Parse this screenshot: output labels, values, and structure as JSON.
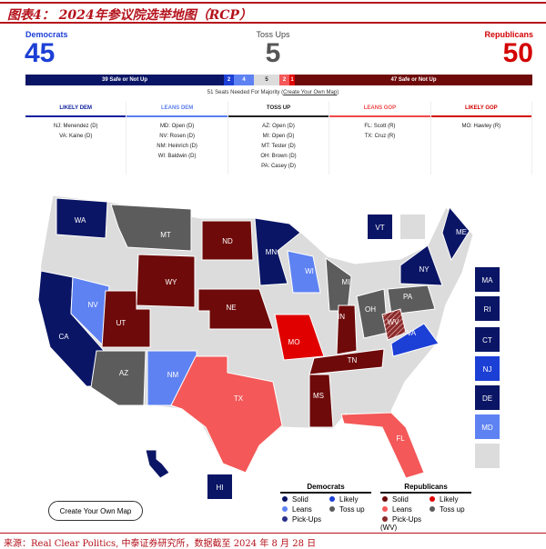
{
  "title": "图表4：  2024年参议院选举地图（RCP）",
  "summary": {
    "dem_label": "Democrats",
    "dem_count": "45",
    "toss_label": "Toss Ups",
    "toss_count": "5",
    "rep_label": "Republicans",
    "rep_count": "50"
  },
  "bar": {
    "dem_safe": "39 Safe or Not Up",
    "dem_likely": "2",
    "dem_leans": "4",
    "toss": "5",
    "rep_leans": "2",
    "rep_likely": "1",
    "rep_safe": "47 Safe or Not Up"
  },
  "majority": {
    "text": "51 Seats Needed For Majority (",
    "link": "Create Your Own Map",
    "close": ")"
  },
  "columns": [
    {
      "title": "LIKELY DEM",
      "color": "#0d1f9e",
      "races": [
        "NJ: Menendez (D)",
        "VA: Kaine (D)"
      ]
    },
    {
      "title": "LEANS DEM",
      "color": "#5b7ef0",
      "races": [
        "MD: Open (D)",
        "NV: Rosen (D)",
        "NM: Heinrich (D)",
        "WI: Baldwin (D)"
      ]
    },
    {
      "title": "TOSS UP",
      "color": "#222222",
      "races": [
        "AZ: Open (D)",
        "MI: Open (D)",
        "MT: Tester (D)",
        "OH: Brown (D)",
        "PA: Casey (D)"
      ]
    },
    {
      "title": "LEANS GOP",
      "color": "#f04848",
      "races": [
        "FL: Scott (R)",
        "TX: Cruz (R)"
      ]
    },
    {
      "title": "LIKELY GOP",
      "color": "#d40000",
      "races": [
        "MO: Hawley (R)"
      ]
    }
  ],
  "colors": {
    "dem_solid": "#0a1565",
    "dem_likely": "#1c3fd6",
    "dem_leans": "#5e82f2",
    "toss": "#5c5c5c",
    "rep_solid": "#6e0a0a",
    "rep_likely": "#e00000",
    "rep_leans": "#f45858",
    "none": "#dcdcdc"
  },
  "states": [
    {
      "code": "WA",
      "cat": "dem_solid"
    },
    {
      "code": "CA",
      "cat": "dem_solid"
    },
    {
      "code": "NV",
      "cat": "dem_leans"
    },
    {
      "code": "MT",
      "cat": "toss"
    },
    {
      "code": "WY",
      "cat": "rep_solid"
    },
    {
      "code": "UT",
      "cat": "rep_solid"
    },
    {
      "code": "AZ",
      "cat": "toss"
    },
    {
      "code": "NM",
      "cat": "dem_leans"
    },
    {
      "code": "ND",
      "cat": "rep_solid"
    },
    {
      "code": "NE",
      "cat": "rep_solid"
    },
    {
      "code": "TX",
      "cat": "rep_leans"
    },
    {
      "code": "MN",
      "cat": "dem_solid"
    },
    {
      "code": "WI",
      "cat": "dem_leans"
    },
    {
      "code": "MO",
      "cat": "rep_likely"
    },
    {
      "code": "MI",
      "cat": "toss"
    },
    {
      "code": "IN",
      "cat": "rep_solid"
    },
    {
      "code": "OH",
      "cat": "toss"
    },
    {
      "code": "TN",
      "cat": "rep_solid"
    },
    {
      "code": "MS",
      "cat": "rep_solid"
    },
    {
      "code": "FL",
      "cat": "rep_leans"
    },
    {
      "code": "PA",
      "cat": "toss"
    },
    {
      "code": "WV",
      "cat": "rep_pickup"
    },
    {
      "code": "VA",
      "cat": "dem_likely"
    },
    {
      "code": "NY",
      "cat": "dem_solid"
    },
    {
      "code": "ME",
      "cat": "dem_solid"
    },
    {
      "code": "HI",
      "cat": "dem_solid"
    }
  ],
  "boxes": [
    {
      "code": "VT",
      "cat": "dem_solid"
    },
    {
      "code": "",
      "cat": "none"
    },
    {
      "code": "MA",
      "cat": "dem_solid"
    },
    {
      "code": "RI",
      "cat": "dem_solid"
    },
    {
      "code": "CT",
      "cat": "dem_solid"
    },
    {
      "code": "NJ",
      "cat": "dem_likely"
    },
    {
      "code": "DE",
      "cat": "dem_solid"
    },
    {
      "code": "MD",
      "cat": "dem_leans"
    },
    {
      "code": "",
      "cat": "none"
    },
    {
      "code": "HI",
      "cat": "dem_solid"
    }
  ],
  "button": "Create Your Own Map",
  "legend": {
    "dem": {
      "title": "Democrats",
      "items": [
        {
          "label": "Solid",
          "color": "#0a1565"
        },
        {
          "label": "Likely",
          "color": "#1c3fd6"
        },
        {
          "label": "Leans",
          "color": "#5e82f2"
        },
        {
          "label": "Toss up",
          "color": "#5c5c5c"
        },
        {
          "label": "Pick-Ups",
          "color": "#2a2f8a"
        }
      ]
    },
    "rep": {
      "title": "Republicans",
      "items": [
        {
          "label": "Solid",
          "color": "#6e0a0a"
        },
        {
          "label": "Likely",
          "color": "#e00000"
        },
        {
          "label": "Leans",
          "color": "#f45858"
        },
        {
          "label": "Toss up",
          "color": "#5c5c5c"
        },
        {
          "label": "Pick-Ups (WV)",
          "color": "#8a2a2a"
        }
      ]
    }
  },
  "source": "来源：Real Clear Politics, 中泰证券研究所，数据截至 2024 年 8 月 28 日"
}
